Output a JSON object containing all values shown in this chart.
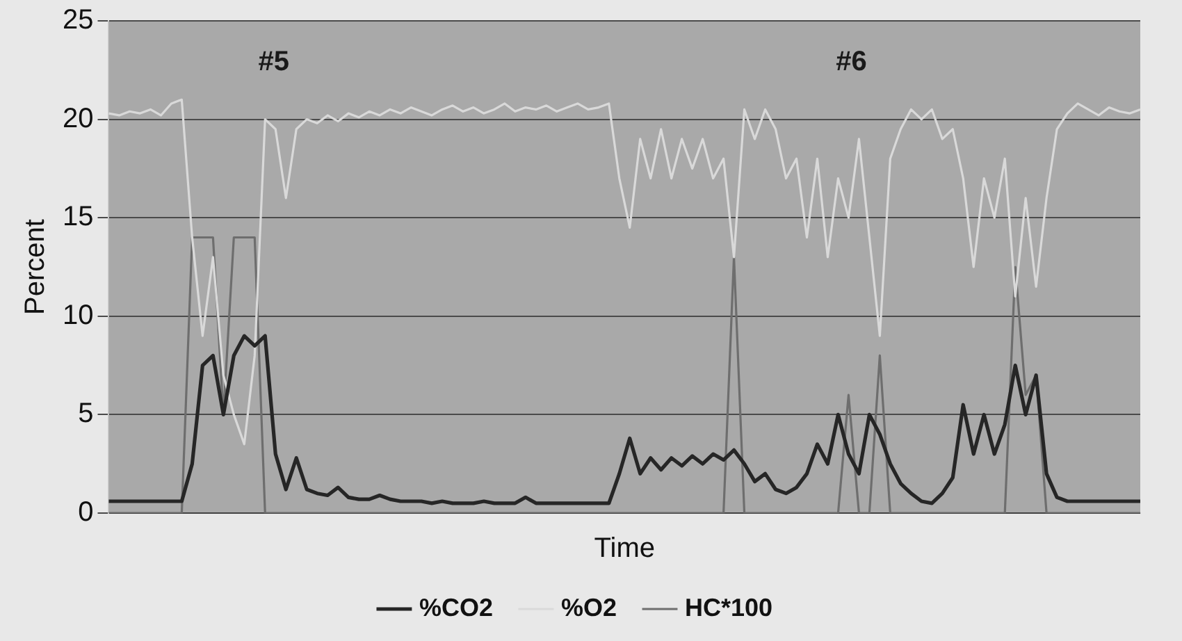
{
  "chart_data": {
    "type": "line",
    "xlabel": "Time",
    "ylabel": "Percent",
    "ylim": [
      0,
      25
    ],
    "yticks": [
      0,
      5,
      10,
      15,
      20,
      25
    ],
    "grid": "y",
    "legend": "bottom",
    "marker": "none",
    "annotations": [
      "#5",
      "#6"
    ],
    "categories": [
      null,
      null,
      null,
      null,
      null,
      null,
      null,
      null,
      null,
      null,
      null,
      null,
      null,
      null,
      null,
      null,
      null,
      null,
      null,
      null,
      null,
      null,
      null,
      null,
      null,
      null,
      null,
      null,
      null,
      null,
      null,
      null,
      null,
      null,
      null,
      null,
      null,
      null,
      null,
      null,
      null,
      null,
      null,
      null,
      null,
      null,
      null,
      null,
      null,
      null,
      null,
      null,
      null,
      null,
      null,
      null,
      null,
      null,
      null,
      null,
      null,
      null,
      null,
      null,
      null,
      null,
      null,
      null,
      null,
      null,
      null,
      null,
      null,
      null,
      null,
      null,
      null,
      null,
      null,
      null,
      null,
      null,
      null,
      null,
      null,
      null,
      null,
      null,
      null,
      null,
      null,
      null,
      null,
      null,
      null,
      null,
      null,
      null,
      null,
      null
    ],
    "series": [
      {
        "name": "%CO2",
        "color": "#262626",
        "values": [
          0.6,
          0.6,
          0.6,
          0.6,
          0.6,
          0.6,
          0.6,
          0.6,
          2.5,
          7.5,
          8,
          5,
          8,
          9,
          8.5,
          9,
          3,
          1.2,
          2.8,
          1.2,
          1,
          0.9,
          1.3,
          0.8,
          0.7,
          0.7,
          0.9,
          0.7,
          0.6,
          0.6,
          0.6,
          0.5,
          0.6,
          0.5,
          0.5,
          0.5,
          0.6,
          0.5,
          0.5,
          0.5,
          0.8,
          0.5,
          0.5,
          0.5,
          0.5,
          0.5,
          0.5,
          0.5,
          0.5,
          2,
          3.8,
          2,
          2.8,
          2.2,
          2.8,
          2.4,
          2.9,
          2.5,
          3,
          2.7,
          3.2,
          2.5,
          1.6,
          2,
          1.2,
          1,
          1.3,
          2,
          3.5,
          2.5,
          5,
          3,
          2,
          5,
          4,
          2.5,
          1.5,
          1,
          0.6,
          0.5,
          1,
          1.8,
          5.5,
          3,
          5,
          3,
          4.5,
          7.5,
          5,
          7,
          2,
          0.8,
          0.6,
          0.6,
          0.6,
          0.6,
          0.6,
          0.6,
          0.6,
          0.6
        ]
      },
      {
        "name": "%O2",
        "color": "#d9d9d9",
        "values": [
          20.3,
          20.2,
          20.4,
          20.3,
          20.5,
          20.2,
          20.8,
          21,
          14,
          9,
          13,
          7,
          5,
          3.5,
          8,
          20,
          19.5,
          16,
          19.5,
          20,
          19.8,
          20.2,
          19.9,
          20.3,
          20.1,
          20.4,
          20.2,
          20.5,
          20.3,
          20.6,
          20.4,
          20.2,
          20.5,
          20.7,
          20.4,
          20.6,
          20.3,
          20.5,
          20.8,
          20.4,
          20.6,
          20.5,
          20.7,
          20.4,
          20.6,
          20.8,
          20.5,
          20.6,
          20.8,
          17,
          14.5,
          19,
          17,
          19.5,
          17,
          19,
          17.5,
          19,
          17,
          18,
          13,
          20.5,
          19,
          20.5,
          19.5,
          17,
          18,
          14,
          18,
          13,
          17,
          15,
          19,
          14,
          9,
          18,
          19.5,
          20.5,
          20,
          20.5,
          19,
          19.5,
          17,
          12.5,
          17,
          15,
          18,
          11,
          16,
          11.5,
          16,
          19.5,
          20.3,
          20.8,
          20.5,
          20.2,
          20.6,
          20.4,
          20.3,
          20.5
        ]
      },
      {
        "name": "HC*100",
        "color": "#6e6e6e",
        "values": [
          0,
          0,
          0,
          0,
          0,
          0,
          0,
          0,
          14,
          14,
          14,
          5,
          14,
          14,
          14,
          0,
          0,
          0,
          0,
          0,
          0,
          0,
          0,
          0,
          0,
          0,
          0,
          0,
          0,
          0,
          0,
          0,
          0,
          0,
          0,
          0,
          0,
          0,
          0,
          0,
          0,
          0,
          0,
          0,
          0,
          0,
          0,
          0,
          0,
          0,
          0,
          0,
          0,
          0,
          0,
          0,
          0,
          0,
          0,
          0,
          13,
          0,
          0,
          0,
          0,
          0,
          0,
          0,
          0,
          0,
          0,
          6,
          0,
          0,
          8,
          0,
          0,
          0,
          0,
          0,
          0,
          0,
          0,
          0,
          0,
          0,
          0,
          12.5,
          6,
          7,
          0,
          0,
          0,
          0,
          0,
          0,
          0,
          0,
          0,
          0
        ]
      }
    ]
  }
}
